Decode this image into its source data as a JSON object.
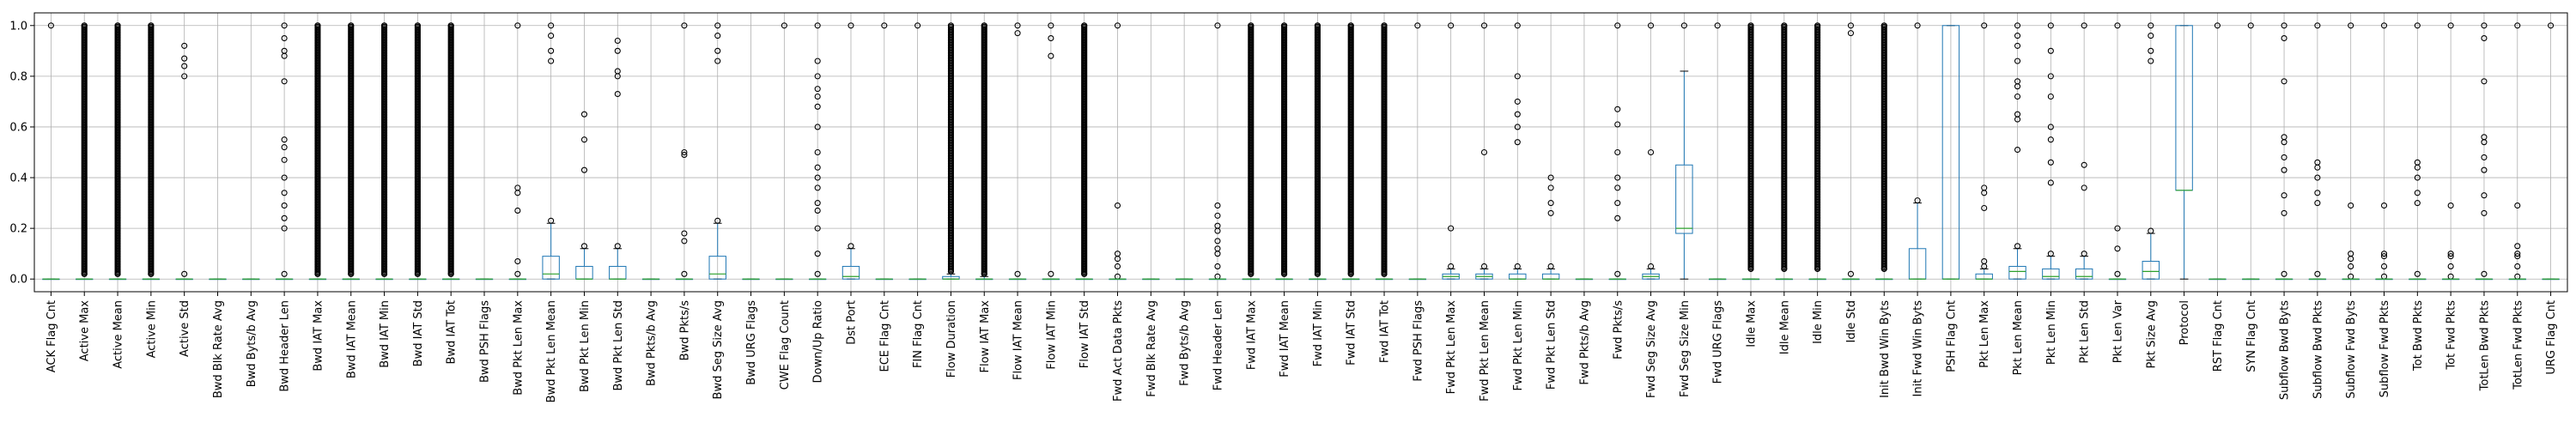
{
  "chart_data": {
    "type": "box",
    "ylim": [
      -0.05,
      1.05
    ],
    "y_ticks": [
      0.0,
      0.2,
      0.4,
      0.6,
      0.8,
      1.0
    ],
    "y_tick_labels": [
      "0.0",
      "0.2",
      "0.4",
      "0.6",
      "0.8",
      "1.0"
    ],
    "grid": true,
    "colors": {
      "box": "#1f77b4",
      "median": "#2ca02c",
      "flier": "#000000",
      "grid": "#b0b0b0"
    },
    "series": [
      {
        "name": "ACK Flag Cnt",
        "q1": 0,
        "median": 0,
        "q3": 0,
        "whislo": 0,
        "whishi": 0,
        "fliers": [
          1.0
        ]
      },
      {
        "name": "Active Max",
        "q1": 0,
        "median": 0,
        "q3": 0,
        "whislo": 0,
        "whishi": 0,
        "fliers": [
          0.02,
          1.0
        ]
      },
      {
        "name": "Active Mean",
        "q1": 0,
        "median": 0,
        "q3": 0,
        "whislo": 0,
        "whishi": 0,
        "fliers": [
          0.02,
          1.0
        ]
      },
      {
        "name": "Active Min",
        "q1": 0,
        "median": 0,
        "q3": 0,
        "whislo": 0,
        "whishi": 0,
        "fliers": [
          0.02,
          1.0
        ]
      },
      {
        "name": "Active Std",
        "q1": 0,
        "median": 0,
        "q3": 0,
        "whislo": 0,
        "whishi": 0,
        "fliers": [
          0.02,
          0.92,
          0.87,
          0.84,
          0.8
        ]
      },
      {
        "name": "Bwd Blk Rate Avg",
        "q1": 0,
        "median": 0,
        "q3": 0,
        "whislo": 0,
        "whishi": 0,
        "fliers": []
      },
      {
        "name": "Bwd Byts/b Avg",
        "q1": 0,
        "median": 0,
        "q3": 0,
        "whislo": 0,
        "whishi": 0,
        "fliers": []
      },
      {
        "name": "Bwd Header Len",
        "q1": 0,
        "median": 0,
        "q3": 0,
        "whislo": 0,
        "whishi": 0,
        "fliers": [
          0.02,
          0.2,
          0.24,
          0.29,
          0.34,
          0.4,
          0.47,
          0.52,
          0.55,
          0.78,
          0.88,
          0.9,
          0.95,
          1.0
        ]
      },
      {
        "name": "Bwd IAT Max",
        "q1": 0,
        "median": 0,
        "q3": 0,
        "whislo": 0,
        "whishi": 0,
        "fliers": [
          0.02,
          1.0
        ]
      },
      {
        "name": "Bwd IAT Mean",
        "q1": 0,
        "median": 0,
        "q3": 0,
        "whislo": 0,
        "whishi": 0,
        "fliers": [
          0.02,
          1.0
        ]
      },
      {
        "name": "Bwd IAT Min",
        "q1": 0,
        "median": 0,
        "q3": 0,
        "whislo": 0,
        "whishi": 0,
        "fliers": [
          0.02,
          1.0
        ]
      },
      {
        "name": "Bwd IAT Std",
        "q1": 0,
        "median": 0,
        "q3": 0,
        "whislo": 0,
        "whishi": 0,
        "fliers": [
          0.02,
          1.0
        ]
      },
      {
        "name": "Bwd IAT Tot",
        "q1": 0,
        "median": 0,
        "q3": 0,
        "whislo": 0,
        "whishi": 0,
        "fliers": [
          0.02,
          1.0
        ]
      },
      {
        "name": "Bwd PSH Flags",
        "q1": 0,
        "median": 0,
        "q3": 0,
        "whislo": 0,
        "whishi": 0,
        "fliers": []
      },
      {
        "name": "Bwd Pkt Len Max",
        "q1": 0,
        "median": 0,
        "q3": 0,
        "whislo": 0,
        "whishi": 0,
        "fliers": [
          0.02,
          0.07,
          0.27,
          0.34,
          0.36,
          1.0
        ]
      },
      {
        "name": "Bwd Pkt Len Mean",
        "q1": 0,
        "median": 0.02,
        "q3": 0.09,
        "whislo": 0,
        "whishi": 0.22,
        "fliers": [
          0.23,
          0.86,
          0.9,
          0.96,
          1.0
        ]
      },
      {
        "name": "Bwd Pkt Len Min",
        "q1": 0,
        "median": 0,
        "q3": 0.05,
        "whislo": 0,
        "whishi": 0.12,
        "fliers": [
          0.13,
          0.43,
          0.55,
          0.65
        ]
      },
      {
        "name": "Bwd Pkt Len Std",
        "q1": 0,
        "median": 0,
        "q3": 0.05,
        "whislo": 0,
        "whishi": 0.12,
        "fliers": [
          0.13,
          0.73,
          0.8,
          0.82,
          0.9,
          0.94
        ]
      },
      {
        "name": "Bwd Pkts/b Avg",
        "q1": 0,
        "median": 0,
        "q3": 0,
        "whislo": 0,
        "whishi": 0,
        "fliers": []
      },
      {
        "name": "Bwd Pkts/s",
        "q1": 0,
        "median": 0,
        "q3": 0,
        "whislo": 0,
        "whishi": 0,
        "fliers": [
          0.02,
          0.15,
          0.18,
          0.49,
          0.5,
          1.0
        ]
      },
      {
        "name": "Bwd Seg Size Avg",
        "q1": 0,
        "median": 0.02,
        "q3": 0.09,
        "whislo": 0,
        "whishi": 0.22,
        "fliers": [
          0.23,
          0.86,
          0.9,
          0.96,
          1.0
        ]
      },
      {
        "name": "Bwd URG Flags",
        "q1": 0,
        "median": 0,
        "q3": 0,
        "whislo": 0,
        "whishi": 0,
        "fliers": []
      },
      {
        "name": "CWE Flag Count",
        "q1": 0,
        "median": 0,
        "q3": 0,
        "whislo": 0,
        "whishi": 0,
        "fliers": [
          1.0
        ]
      },
      {
        "name": "Down/Up Ratio",
        "q1": 0,
        "median": 0,
        "q3": 0,
        "whislo": 0,
        "whishi": 0,
        "fliers": [
          0.02,
          0.1,
          0.2,
          0.27,
          0.3,
          0.36,
          0.4,
          0.44,
          0.5,
          0.6,
          0.68,
          0.72,
          0.75,
          0.8,
          0.86,
          1.0
        ]
      },
      {
        "name": "Dst Port",
        "q1": 0,
        "median": 0.01,
        "q3": 0.05,
        "whislo": 0,
        "whishi": 0.12,
        "fliers": [
          0.13,
          1.0
        ]
      },
      {
        "name": "ECE Flag Cnt",
        "q1": 0,
        "median": 0,
        "q3": 0,
        "whislo": 0,
        "whishi": 0,
        "fliers": [
          1.0
        ]
      },
      {
        "name": "FIN Flag Cnt",
        "q1": 0,
        "median": 0,
        "q3": 0,
        "whislo": 0,
        "whishi": 0,
        "fliers": [
          1.0
        ]
      },
      {
        "name": "Flow Duration",
        "q1": 0,
        "median": 0,
        "q3": 0.01,
        "whislo": 0,
        "whishi": 0.02,
        "fliers": [
          0.03,
          1.0
        ]
      },
      {
        "name": "Flow IAT Max",
        "q1": 0,
        "median": 0,
        "q3": 0,
        "whislo": 0,
        "whishi": 0.01,
        "fliers": [
          0.02,
          1.0
        ]
      },
      {
        "name": "Flow IAT Mean",
        "q1": 0,
        "median": 0,
        "q3": 0,
        "whislo": 0,
        "whishi": 0,
        "fliers": [
          0.02,
          0.97,
          1.0
        ]
      },
      {
        "name": "Flow IAT Min",
        "q1": 0,
        "median": 0,
        "q3": 0,
        "whislo": 0,
        "whishi": 0,
        "fliers": [
          0.02,
          0.88,
          0.95,
          1.0
        ]
      },
      {
        "name": "Flow IAT Std",
        "q1": 0,
        "median": 0,
        "q3": 0,
        "whislo": 0,
        "whishi": 0,
        "fliers": [
          0.02,
          1.0
        ]
      },
      {
        "name": "Fwd Act Data Pkts",
        "q1": 0,
        "median": 0,
        "q3": 0,
        "whislo": 0,
        "whishi": 0,
        "fliers": [
          0.01,
          0.05,
          0.08,
          0.1,
          0.29,
          1.0
        ]
      },
      {
        "name": "Fwd Blk Rate Avg",
        "q1": 0,
        "median": 0,
        "q3": 0,
        "whislo": 0,
        "whishi": 0,
        "fliers": []
      },
      {
        "name": "Fwd Byts/b Avg",
        "q1": 0,
        "median": 0,
        "q3": 0,
        "whislo": 0,
        "whishi": 0,
        "fliers": []
      },
      {
        "name": "Fwd Header Len",
        "q1": 0,
        "median": 0,
        "q3": 0,
        "whislo": 0,
        "whishi": 0,
        "fliers": [
          0.01,
          0.05,
          0.1,
          0.12,
          0.15,
          0.19,
          0.21,
          0.25,
          0.29,
          1.0
        ]
      },
      {
        "name": "Fwd IAT Max",
        "q1": 0,
        "median": 0,
        "q3": 0,
        "whislo": 0,
        "whishi": 0,
        "fliers": [
          0.02,
          1.0
        ]
      },
      {
        "name": "Fwd IAT Mean",
        "q1": 0,
        "median": 0,
        "q3": 0,
        "whislo": 0,
        "whishi": 0,
        "fliers": [
          0.02,
          1.0
        ]
      },
      {
        "name": "Fwd IAT Min",
        "q1": 0,
        "median": 0,
        "q3": 0,
        "whislo": 0,
        "whishi": 0,
        "fliers": [
          0.02,
          1.0
        ]
      },
      {
        "name": "Fwd IAT Std",
        "q1": 0,
        "median": 0,
        "q3": 0,
        "whislo": 0,
        "whishi": 0,
        "fliers": [
          0.02,
          1.0
        ]
      },
      {
        "name": "Fwd IAT Tot",
        "q1": 0,
        "median": 0,
        "q3": 0,
        "whislo": 0,
        "whishi": 0,
        "fliers": [
          0.02,
          1.0
        ]
      },
      {
        "name": "Fwd PSH Flags",
        "q1": 0,
        "median": 0,
        "q3": 0,
        "whislo": 0,
        "whishi": 0,
        "fliers": [
          1.0
        ]
      },
      {
        "name": "Fwd Pkt Len Max",
        "q1": 0,
        "median": 0.01,
        "q3": 0.02,
        "whislo": 0,
        "whishi": 0.04,
        "fliers": [
          0.05,
          0.2,
          1.0
        ]
      },
      {
        "name": "Fwd Pkt Len Mean",
        "q1": 0,
        "median": 0.01,
        "q3": 0.02,
        "whislo": 0,
        "whishi": 0.04,
        "fliers": [
          0.05,
          0.5,
          1.0
        ]
      },
      {
        "name": "Fwd Pkt Len Min",
        "q1": 0,
        "median": 0,
        "q3": 0.02,
        "whislo": 0,
        "whishi": 0.04,
        "fliers": [
          0.05,
          0.54,
          0.6,
          0.65,
          0.7,
          0.8,
          1.0
        ]
      },
      {
        "name": "Fwd Pkt Len Std",
        "q1": 0,
        "median": 0,
        "q3": 0.02,
        "whislo": 0,
        "whishi": 0.04,
        "fliers": [
          0.05,
          0.26,
          0.3,
          0.36,
          0.4
        ]
      },
      {
        "name": "Fwd Pkts/b Avg",
        "q1": 0,
        "median": 0,
        "q3": 0,
        "whislo": 0,
        "whishi": 0,
        "fliers": []
      },
      {
        "name": "Fwd Pkts/s",
        "q1": 0,
        "median": 0,
        "q3": 0,
        "whislo": 0,
        "whishi": 0,
        "fliers": [
          0.02,
          0.24,
          0.3,
          0.36,
          0.4,
          0.5,
          0.61,
          0.67,
          1.0
        ]
      },
      {
        "name": "Fwd Seg Size Avg",
        "q1": 0,
        "median": 0.01,
        "q3": 0.02,
        "whislo": 0,
        "whishi": 0.04,
        "fliers": [
          0.05,
          0.5,
          1.0
        ]
      },
      {
        "name": "Fwd Seg Size Min",
        "q1": 0.18,
        "median": 0.2,
        "q3": 0.45,
        "whislo": 0,
        "whishi": 0.82,
        "fliers": [
          1.0
        ]
      },
      {
        "name": "Fwd URG Flags",
        "q1": 0,
        "median": 0,
        "q3": 0,
        "whislo": 0,
        "whishi": 0,
        "fliers": [
          1.0
        ]
      },
      {
        "name": "Idle Max",
        "q1": 0,
        "median": 0,
        "q3": 0,
        "whislo": 0,
        "whishi": 0,
        "fliers": [
          0.04,
          1.0
        ]
      },
      {
        "name": "Idle Mean",
        "q1": 0,
        "median": 0,
        "q3": 0,
        "whislo": 0,
        "whishi": 0,
        "fliers": [
          0.04,
          1.0
        ]
      },
      {
        "name": "Idle Min",
        "q1": 0,
        "median": 0,
        "q3": 0,
        "whislo": 0,
        "whishi": 0,
        "fliers": [
          0.04,
          1.0
        ]
      },
      {
        "name": "Idle Std",
        "q1": 0,
        "median": 0,
        "q3": 0,
        "whislo": 0,
        "whishi": 0,
        "fliers": [
          0.02,
          0.97,
          1.0
        ]
      },
      {
        "name": "Init Bwd Win Byts",
        "q1": 0,
        "median": 0,
        "q3": 0,
        "whislo": 0,
        "whishi": 0,
        "fliers": [
          0.04,
          1.0
        ]
      },
      {
        "name": "Init Fwd Win Byts",
        "q1": 0,
        "median": 0,
        "q3": 0.12,
        "whislo": 0,
        "whishi": 0.3,
        "fliers": [
          0.31,
          1.0
        ]
      },
      {
        "name": "PSH Flag Cnt",
        "q1": 0,
        "median": 0,
        "q3": 1.0,
        "whislo": 0,
        "whishi": 1.0,
        "fliers": []
      },
      {
        "name": "Pkt Len Max",
        "q1": 0,
        "median": 0,
        "q3": 0.02,
        "whislo": 0,
        "whishi": 0.04,
        "fliers": [
          0.05,
          0.07,
          0.28,
          0.34,
          0.36,
          1.0
        ]
      },
      {
        "name": "Pkt Len Mean",
        "q1": 0,
        "median": 0.03,
        "q3": 0.05,
        "whislo": 0,
        "whishi": 0.12,
        "fliers": [
          0.13,
          0.51,
          0.63,
          0.65,
          0.72,
          0.76,
          0.78,
          0.86,
          0.92,
          0.96,
          1.0
        ]
      },
      {
        "name": "Pkt Len Min",
        "q1": 0,
        "median": 0.01,
        "q3": 0.04,
        "whislo": 0,
        "whishi": 0.09,
        "fliers": [
          0.1,
          0.38,
          0.46,
          0.55,
          0.6,
          0.72,
          0.8,
          0.9,
          1.0
        ]
      },
      {
        "name": "Pkt Len Std",
        "q1": 0,
        "median": 0.01,
        "q3": 0.04,
        "whislo": 0,
        "whishi": 0.09,
        "fliers": [
          0.1,
          0.36,
          0.45,
          1.0
        ]
      },
      {
        "name": "Pkt Len Var",
        "q1": 0,
        "median": 0,
        "q3": 0,
        "whislo": 0,
        "whishi": 0,
        "fliers": [
          0.02,
          0.12,
          0.2,
          1.0
        ]
      },
      {
        "name": "Pkt Size Avg",
        "q1": 0,
        "median": 0.03,
        "q3": 0.07,
        "whislo": 0,
        "whishi": 0.18,
        "fliers": [
          0.19,
          0.86,
          0.9,
          0.96,
          1.0
        ]
      },
      {
        "name": "Protocol",
        "q1": 0.35,
        "median": 0.35,
        "q3": 1.0,
        "whislo": 0,
        "whishi": 1.0,
        "fliers": []
      },
      {
        "name": "RST Flag Cnt",
        "q1": 0,
        "median": 0,
        "q3": 0,
        "whislo": 0,
        "whishi": 0,
        "fliers": [
          1.0
        ]
      },
      {
        "name": "SYN Flag Cnt",
        "q1": 0,
        "median": 0,
        "q3": 0,
        "whislo": 0,
        "whishi": 0,
        "fliers": [
          1.0
        ]
      },
      {
        "name": "Subflow Bwd Byts",
        "q1": 0,
        "median": 0,
        "q3": 0,
        "whislo": 0,
        "whishi": 0,
        "fliers": [
          0.02,
          0.26,
          0.33,
          0.43,
          0.48,
          0.54,
          0.56,
          0.78,
          0.95,
          1.0
        ]
      },
      {
        "name": "Subflow Bwd Pkts",
        "q1": 0,
        "median": 0,
        "q3": 0,
        "whislo": 0,
        "whishi": 0,
        "fliers": [
          0.02,
          0.3,
          0.34,
          0.4,
          0.44,
          0.46,
          1.0
        ]
      },
      {
        "name": "Subflow Fwd Byts",
        "q1": 0,
        "median": 0,
        "q3": 0,
        "whislo": 0,
        "whishi": 0,
        "fliers": [
          0.01,
          0.05,
          0.08,
          0.1,
          0.29,
          1.0
        ]
      },
      {
        "name": "Subflow Fwd Pkts",
        "q1": 0,
        "median": 0,
        "q3": 0,
        "whislo": 0,
        "whishi": 0,
        "fliers": [
          0.01,
          0.05,
          0.09,
          0.1,
          0.29,
          1.0
        ]
      },
      {
        "name": "Tot Bwd Pkts",
        "q1": 0,
        "median": 0,
        "q3": 0,
        "whislo": 0,
        "whishi": 0,
        "fliers": [
          0.02,
          0.3,
          0.34,
          0.4,
          0.44,
          0.46,
          1.0
        ]
      },
      {
        "name": "Tot Fwd Pkts",
        "q1": 0,
        "median": 0,
        "q3": 0,
        "whislo": 0,
        "whishi": 0,
        "fliers": [
          0.01,
          0.05,
          0.09,
          0.1,
          0.29,
          1.0
        ]
      },
      {
        "name": "TotLen Bwd Pkts",
        "q1": 0,
        "median": 0,
        "q3": 0,
        "whislo": 0,
        "whishi": 0,
        "fliers": [
          0.02,
          0.26,
          0.33,
          0.43,
          0.48,
          0.54,
          0.56,
          0.78,
          0.95,
          1.0
        ]
      },
      {
        "name": "TotLen Fwd Pkts",
        "q1": 0,
        "median": 0,
        "q3": 0,
        "whislo": 0,
        "whishi": 0,
        "fliers": [
          0.01,
          0.05,
          0.09,
          0.1,
          0.13,
          0.29,
          1.0
        ]
      },
      {
        "name": "URG Flag Cnt",
        "q1": 0,
        "median": 0,
        "q3": 0,
        "whislo": 0,
        "whishi": 0,
        "fliers": [
          1.0
        ]
      }
    ]
  }
}
